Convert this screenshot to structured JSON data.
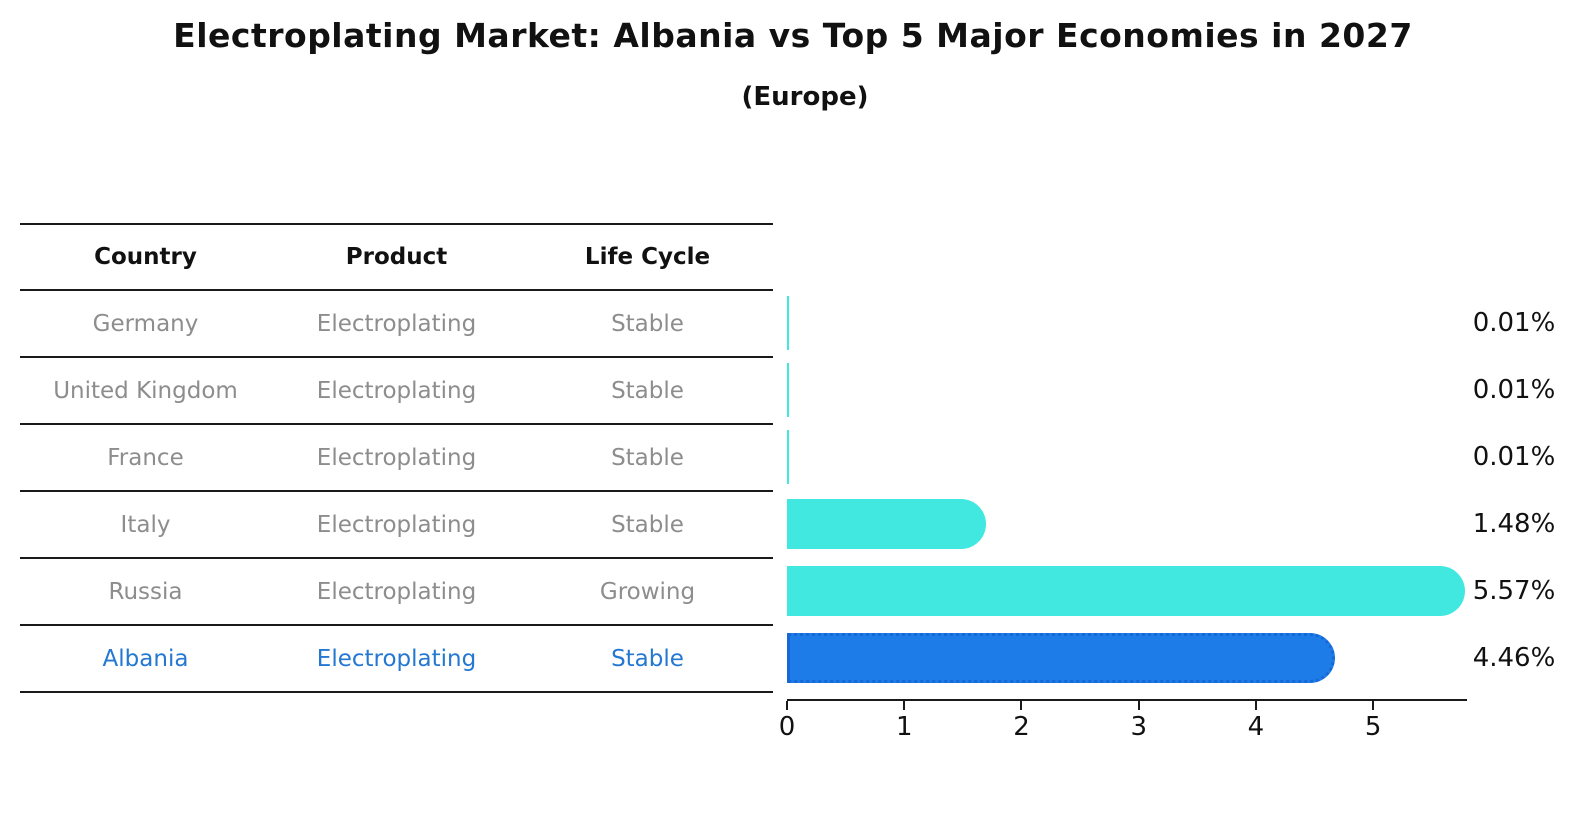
{
  "page": {
    "title": "Electroplating Market: Albania vs Top 5 Major Economies in 2027",
    "subtitle": "(Europe)"
  },
  "colors": {
    "bar_default": "#40e8e0",
    "bar_highlight": "#1e7ce8",
    "highlight_text": "#2478d2",
    "muted_text": "#8d8d8d",
    "axis_and_lines": "#1a1a1a"
  },
  "table": {
    "headers": {
      "country": "Country",
      "product": "Product",
      "life_cycle": "Life Cycle"
    },
    "rows": [
      {
        "country": "Germany",
        "product": "Electroplating",
        "life_cycle": "Stable"
      },
      {
        "country": "United Kingdom",
        "product": "Electroplating",
        "life_cycle": "Stable"
      },
      {
        "country": "France",
        "product": "Electroplating",
        "life_cycle": "Stable"
      },
      {
        "country": "Italy",
        "product": "Electroplating",
        "life_cycle": "Stable"
      },
      {
        "country": "Russia",
        "product": "Electroplating",
        "life_cycle": "Growing"
      },
      {
        "country": "Albania",
        "product": "Electroplating",
        "life_cycle": "Stable"
      }
    ]
  },
  "chart_data": {
    "type": "bar",
    "orientation": "horizontal",
    "title": "Electroplating Market: Albania vs Top 5 Major Economies in 2027",
    "subtitle": "(Europe)",
    "categories": [
      "Germany",
      "United Kingdom",
      "France",
      "Italy",
      "Russia",
      "Albania"
    ],
    "values": [
      0.01,
      0.01,
      0.01,
      1.48,
      5.57,
      4.46
    ],
    "value_labels": [
      "0.01%",
      "0.01%",
      "0.01%",
      "1.48%",
      "5.57%",
      "4.46%"
    ],
    "highlight_index": 5,
    "highlight_category": "Albania",
    "bar_colors": [
      "#40e8e0",
      "#40e8e0",
      "#40e8e0",
      "#40e8e0",
      "#40e8e0",
      "#1e7ce8"
    ],
    "xlabel": "",
    "ylabel": "",
    "x_ticks": [
      0,
      1,
      2,
      3,
      4,
      5
    ],
    "xlim": [
      0,
      5.8
    ],
    "grid": false,
    "legend": "none"
  }
}
